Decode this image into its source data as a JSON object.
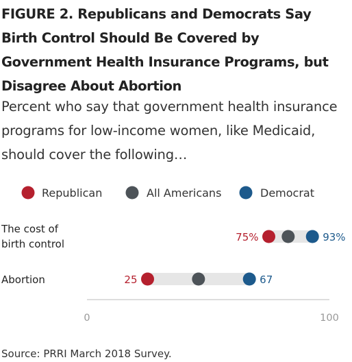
{
  "title": "FIGURE 2.  Republicans and Democrats Say Birth Control Should Be Covered by Government Health Insurance Programs, but Disagree About Abortion",
  "subtitle": "Percent who say that government health insurance programs for low-income women, like Medicaid, should cover the following…",
  "source": "Source: PRRI March 2018 Survey.",
  "colors": {
    "republican": "#b5202e",
    "all_americans": "#4d5358",
    "democrat": "#1d5a8c",
    "range_bar": "#e6e6e6",
    "axis": "#bbbbbb"
  },
  "chart_data": {
    "type": "dot-range",
    "xlim": [
      0,
      100
    ],
    "ticks": [
      {
        "value": 0,
        "label": "0"
      },
      {
        "value": 100,
        "label": "100"
      }
    ],
    "legend": [
      {
        "key": "republican",
        "label": "Republican"
      },
      {
        "key": "all_americans",
        "label": "All Americans"
      },
      {
        "key": "democrat",
        "label": "Democrat"
      }
    ],
    "rows": [
      {
        "label_lines": [
          "The cost of",
          "birth control"
        ],
        "republican": 75,
        "all_americans": 83,
        "democrat": 93,
        "republican_label": "75%",
        "democrat_label": "93%"
      },
      {
        "label_lines": [
          "Abortion"
        ],
        "republican": 25,
        "all_americans": 46,
        "democrat": 67,
        "republican_label": "25",
        "democrat_label": "67"
      }
    ]
  }
}
